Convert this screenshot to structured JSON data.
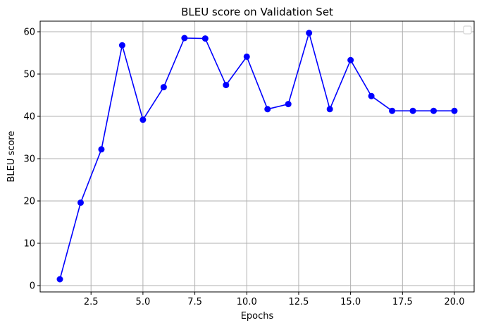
{
  "chart_data": {
    "type": "line",
    "title": "BLEU score on Validation Set",
    "xlabel": "Epochs",
    "ylabel": "BLEU score",
    "xlim": [
      0.05,
      20.95
    ],
    "ylim": [
      -1.5,
      62.5
    ],
    "xticks": [
      2.5,
      5.0,
      7.5,
      10.0,
      12.5,
      15.0,
      17.5,
      20.0
    ],
    "xtick_labels": [
      "2.5",
      "5.0",
      "7.5",
      "10.0",
      "12.5",
      "15.0",
      "17.5",
      "20.0"
    ],
    "yticks": [
      0,
      10,
      20,
      30,
      40,
      50,
      60
    ],
    "ytick_labels": [
      "0",
      "10",
      "20",
      "30",
      "40",
      "50",
      "60"
    ],
    "grid": true,
    "legend": "upper-right (empty)",
    "series": [
      {
        "color": "#0000ff",
        "marker": "circle",
        "x": [
          1,
          2,
          3,
          4,
          5,
          6,
          7,
          8,
          9,
          10,
          11,
          12,
          13,
          14,
          15,
          16,
          17,
          18,
          19,
          20
        ],
        "y": [
          1.5,
          19.6,
          32.2,
          56.8,
          39.2,
          46.9,
          58.5,
          58.4,
          47.4,
          54.1,
          41.7,
          42.9,
          59.7,
          41.7,
          53.3,
          44.8,
          41.3,
          41.3,
          41.3,
          41.3
        ]
      }
    ]
  }
}
